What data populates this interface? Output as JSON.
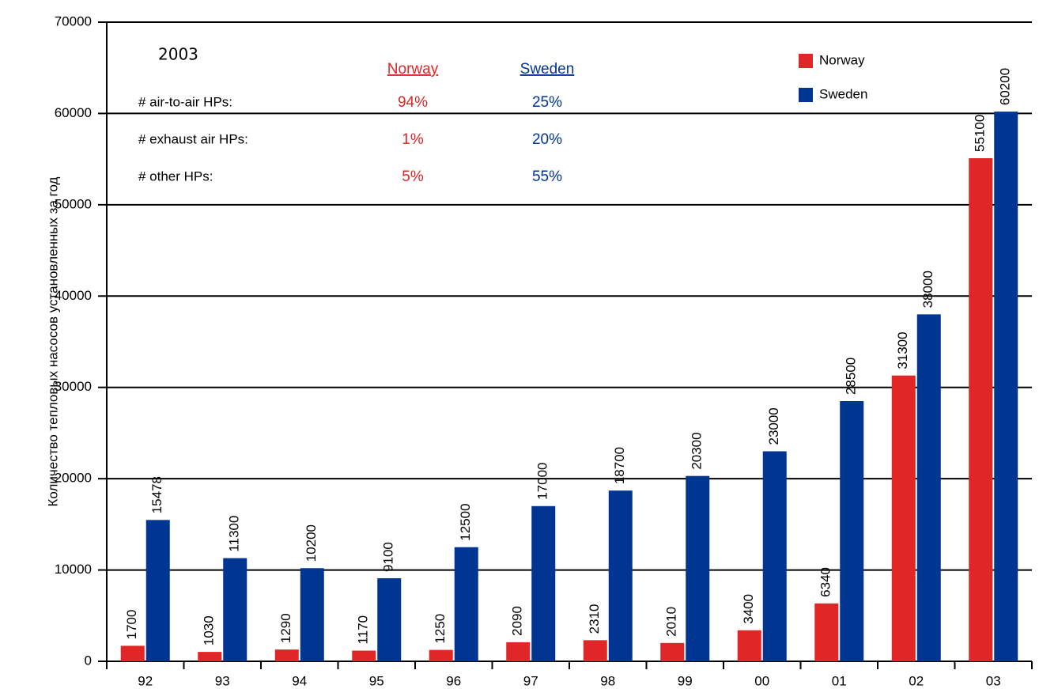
{
  "chart_data": {
    "type": "bar",
    "y_label": "Количество тепловых насосов установленных за год",
    "categories": [
      "92",
      "93",
      "94",
      "95",
      "96",
      "97",
      "98",
      "99",
      "00",
      "01",
      "02",
      "03"
    ],
    "series": [
      {
        "name": "Norway",
        "color": "#e02626",
        "values": [
          1700,
          1030,
          1290,
          1170,
          1250,
          2090,
          2310,
          2010,
          3400,
          6340,
          31300,
          55100
        ]
      },
      {
        "name": "Sweden",
        "color": "#003591",
        "values": [
          15478,
          11300,
          10200,
          9100,
          12500,
          17000,
          18700,
          20300,
          23000,
          28500,
          38000,
          60200
        ]
      }
    ],
    "ylim": [
      0,
      70000
    ],
    "yticks": [
      0,
      10000,
      20000,
      30000,
      40000,
      50000,
      60000,
      70000
    ],
    "grid": true,
    "legend": "top-right",
    "annotation": {
      "year": "2003",
      "columns": [
        "Norway",
        "Sweden"
      ],
      "rows": [
        {
          "label": "# air-to-air HPs:",
          "values": [
            "94%",
            "25%"
          ]
        },
        {
          "label": "# exhaust air HPs:",
          "values": [
            "1%",
            "20%"
          ]
        },
        {
          "label": "# other HPs:",
          "values": [
            "5%",
            "55%"
          ]
        }
      ]
    }
  }
}
